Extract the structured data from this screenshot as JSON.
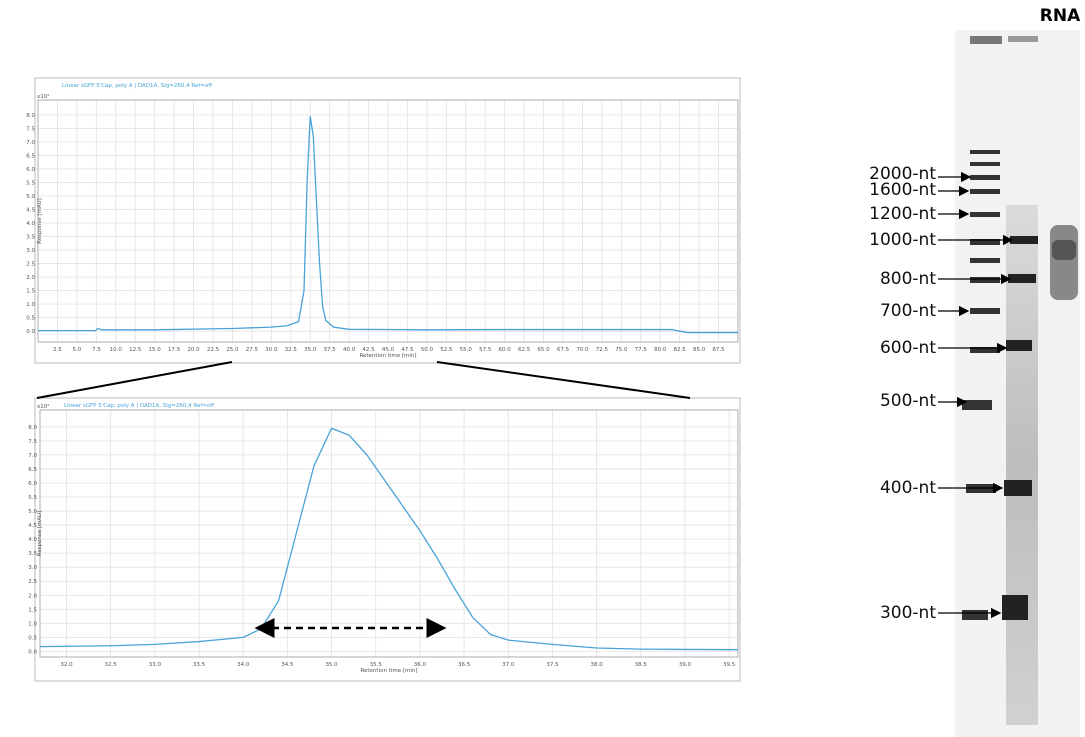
{
  "chart_data": [
    {
      "type": "line",
      "title": "Linear sGFP 5'Cap, poly A | DAD1A, Sig=260,4 Ref=off",
      "y_multiplier": "x10²",
      "xlabel": "Retention time [min]",
      "ylabel": "Response [mAU]",
      "color": "#4aa3d8",
      "grid": true,
      "xlim": [
        0,
        90
      ],
      "ylim": [
        -0.4,
        8.55
      ],
      "xticks": [
        2.5,
        {
          "value": 5,
          "label": "5.0"
        },
        7.5,
        {
          "value": 10,
          "label": "10.0"
        },
        12.5,
        {
          "value": 15,
          "label": "15.0"
        },
        17.5,
        {
          "value": 20,
          "label": "20.0"
        },
        22.5,
        {
          "value": 25,
          "label": "25.0"
        },
        27.5,
        {
          "value": 30,
          "label": "30.0"
        },
        32.5,
        {
          "value": 35,
          "label": "35.0"
        },
        37.5,
        {
          "value": 40,
          "label": "40.0"
        },
        42.5,
        {
          "value": 45,
          "label": "45.0"
        },
        47.5,
        {
          "value": 50,
          "label": "50.0"
        },
        52.5,
        {
          "value": 55,
          "label": "55.0"
        },
        57.5,
        {
          "value": 60,
          "label": "60.0"
        },
        62.5,
        {
          "value": 65,
          "label": "65.0"
        },
        67.5,
        {
          "value": 70,
          "label": "70.0"
        },
        72.5,
        {
          "value": 75,
          "label": "75.0"
        },
        77.5,
        {
          "value": 80,
          "label": "80.0"
        },
        82.5,
        {
          "value": 85,
          "label": "85.0"
        },
        87.5
      ],
      "yticks": [
        {
          "value": 0,
          "label": "0.0"
        },
        0.5,
        {
          "value": 1,
          "label": "1.0"
        },
        1.5,
        {
          "value": 2,
          "label": "2.0"
        },
        2.5,
        {
          "value": 3,
          "label": "3.0"
        },
        3.5,
        {
          "value": 4,
          "label": "4.0"
        },
        4.5,
        {
          "value": 5,
          "label": "5.0"
        },
        5.5,
        {
          "value": 6,
          "label": "6.0"
        },
        6.5,
        {
          "value": 7,
          "label": "7.0"
        },
        7.5,
        {
          "value": 8,
          "label": "8.0"
        }
      ],
      "x": [
        0,
        7.4,
        7.7,
        8.2,
        15,
        25,
        30,
        32,
        33.5,
        34.2,
        34.6,
        35,
        35.4,
        35.8,
        36.2,
        36.6,
        37,
        38,
        40,
        50,
        60,
        70,
        81.5,
        82.5,
        83.5,
        90
      ],
      "values": [
        0.02,
        0.02,
        0.1,
        0.05,
        0.05,
        0.1,
        0.15,
        0.2,
        0.35,
        1.5,
        5.5,
        7.95,
        7.2,
        4.8,
        2.5,
        0.9,
        0.4,
        0.15,
        0.07,
        0.05,
        0.06,
        0.06,
        0.06,
        0.0,
        -0.05,
        -0.05
      ]
    },
    {
      "type": "line",
      "title": "Linear sGFP 5'Cap, poly A | DAD1A, Sig=260,4 Ref=off",
      "y_multiplier": "x10²",
      "xlabel": "Retention time [min]",
      "ylabel": "Response [mAU]",
      "color": "#4aa3d8",
      "grid": true,
      "xlim": [
        31.7,
        39.6
      ],
      "ylim": [
        -0.2,
        8.6
      ],
      "xticks": [
        {
          "value": 32,
          "label": "32.0"
        },
        32.5,
        {
          "value": 33,
          "label": "33.0"
        },
        33.5,
        {
          "value": 34,
          "label": "34.0"
        },
        34.5,
        {
          "value": 35,
          "label": "35.0"
        },
        35.5,
        {
          "value": 36,
          "label": "36.0"
        },
        36.5,
        {
          "value": 37,
          "label": "37.0"
        },
        37.5,
        {
          "value": 38,
          "label": "38.0"
        },
        38.5,
        {
          "value": 39,
          "label": "39.0"
        },
        39.5
      ],
      "yticks": [
        {
          "value": 0,
          "label": "0.0"
        },
        0.5,
        {
          "value": 1,
          "label": "1.0"
        },
        1.5,
        {
          "value": 2,
          "label": "2.0"
        },
        2.5,
        {
          "value": 3,
          "label": "3.0"
        },
        3.5,
        {
          "value": 4,
          "label": "4.0"
        },
        4.5,
        {
          "value": 5,
          "label": "5.0"
        },
        5.5,
        {
          "value": 6,
          "label": "6.0"
        },
        6.5,
        {
          "value": 7,
          "label": "7.0"
        },
        7.5,
        {
          "value": 8,
          "label": "8.0"
        }
      ],
      "x": [
        31.7,
        32.5,
        33,
        33.5,
        34,
        34.2,
        34.4,
        34.6,
        34.8,
        35,
        35.2,
        35.4,
        35.6,
        35.8,
        36,
        36.2,
        36.4,
        36.6,
        36.8,
        37,
        37.5,
        38,
        38.5,
        39,
        39.6
      ],
      "values": [
        0.17,
        0.2,
        0.25,
        0.35,
        0.5,
        0.8,
        1.8,
        4.2,
        6.6,
        7.95,
        7.7,
        7.0,
        6.1,
        5.2,
        4.3,
        3.3,
        2.2,
        1.2,
        0.6,
        0.4,
        0.25,
        0.12,
        0.08,
        0.07,
        0.06
      ]
    }
  ],
  "gel": {
    "lane_label": "RNA",
    "markers": [
      "2000-nt",
      "1600-nt",
      "1200-nt",
      "1000-nt",
      "800-nt",
      "700-nt",
      "600-nt",
      "500-nt",
      "400-nt",
      "300-nt"
    ]
  }
}
